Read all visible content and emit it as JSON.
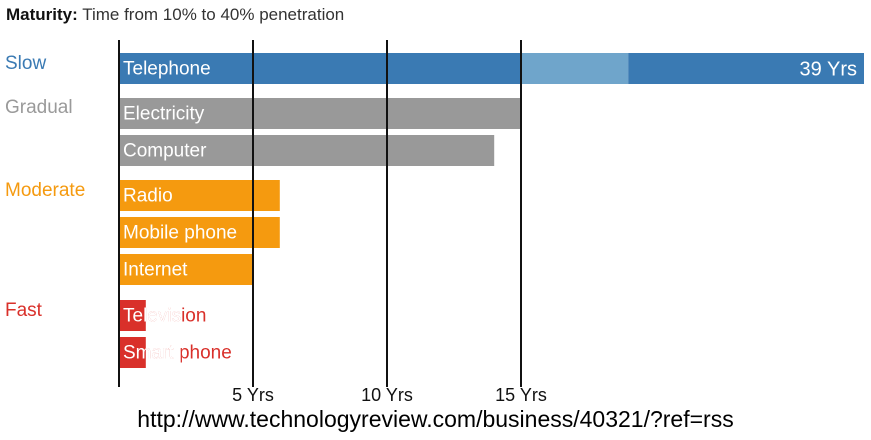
{
  "header": {
    "title_bold": "Maturity:",
    "title_rest": "Time from 10% to 40% penetration"
  },
  "footer": {
    "source_url": "http://www.technologyreview.com/business/40321/?ref=rss"
  },
  "chart_data": {
    "type": "bar",
    "orientation": "horizontal",
    "title": "Maturity: Time from 10% to 40% penetration",
    "xlabel": "",
    "ylabel": "",
    "x_ticks": [
      "5 Yrs",
      "10 Yrs",
      "15 Yrs"
    ],
    "x_tick_values": [
      5,
      10,
      15
    ],
    "grid": "vertical lines at ticks",
    "groups": [
      {
        "name": "Slow",
        "color": "#3a7ab3"
      },
      {
        "name": "Gradual",
        "color": "#999999"
      },
      {
        "name": "Moderate",
        "color": "#f59a0f"
      },
      {
        "name": "Fast",
        "color": "#d9302a"
      }
    ],
    "categories": [
      "Telephone",
      "Electricity",
      "Computer",
      "Radio",
      "Mobile phone",
      "Internet",
      "Television",
      "Smart phone"
    ],
    "values": [
      39,
      15,
      14,
      6,
      6,
      5,
      1,
      1
    ],
    "group_of": [
      "Slow",
      "Gradual",
      "Gradual",
      "Moderate",
      "Moderate",
      "Moderate",
      "Fast",
      "Fast"
    ],
    "axis_break": {
      "from": 15,
      "to": 19,
      "note": "Telephone bar is broken after 15 Yrs"
    },
    "data_labels": [
      {
        "category": "Telephone",
        "text": "39 Yrs"
      }
    ]
  }
}
